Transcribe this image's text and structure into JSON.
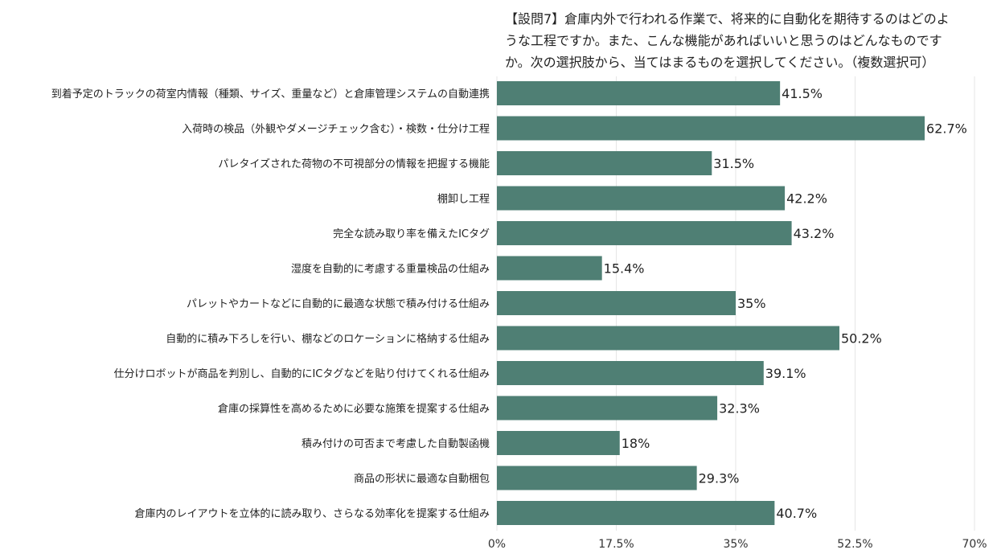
{
  "chart_data": {
    "type": "bar",
    "orientation": "horizontal",
    "title_lines": [
      "【設問7】倉庫内外で行われる作業で、将来的に自動化を期待するのはどのよ",
      "うな工程ですか。また、こんな機能があればいいと思うのはどんなものです",
      "か。次の選択肢から、当てはまるものを選択してください。（複数選択可）"
    ],
    "categories": [
      "到着予定のトラックの荷室内情報（種類、サイズ、重量など）と倉庫管理システムの自動連携",
      "入荷時の検品（外観やダメージチェック含む）・検数・仕分け工程",
      "パレタイズされた荷物の不可視部分の情報を把握する機能",
      "棚卸し工程",
      "完全な読み取り率を備えたICタグ",
      "湿度を自動的に考慮する重量検品の仕組み",
      "パレットやカートなどに自動的に最適な状態で積み付ける仕組み",
      "自動的に積み下ろしを行い、棚などのロケーションに格納する仕組み",
      "仕分けロボットが商品を判別し、自動的にICタグなどを貼り付けてくれる仕組み",
      "倉庫の採算性を高めるために必要な施策を提案する仕組み",
      "積み付けの可否まで考慮した自動製函機",
      "商品の形状に最適な自動梱包",
      "倉庫内のレイアウトを立体的に読み取り、さらなる効率化を提案する仕組み"
    ],
    "values": [
      41.5,
      62.7,
      31.5,
      42.2,
      43.2,
      15.4,
      35,
      50.2,
      39.1,
      32.3,
      18,
      29.3,
      40.7
    ],
    "value_labels": [
      "41.5%",
      "62.7%",
      "31.5%",
      "42.2%",
      "43.2%",
      "15.4%",
      "35%",
      "50.2%",
      "39.1%",
      "32.3%",
      "18%",
      "29.3%",
      "40.7%"
    ],
    "xlim": [
      0,
      70
    ],
    "xticks": [
      0,
      17.5,
      35,
      52.5,
      70
    ],
    "xtick_labels": [
      "0%",
      "17.5%",
      "35%",
      "52.5%",
      "70%"
    ],
    "bar_color": "#4f7f74",
    "grid_color": "#e6e6e6",
    "grid": true,
    "legend": "none"
  }
}
